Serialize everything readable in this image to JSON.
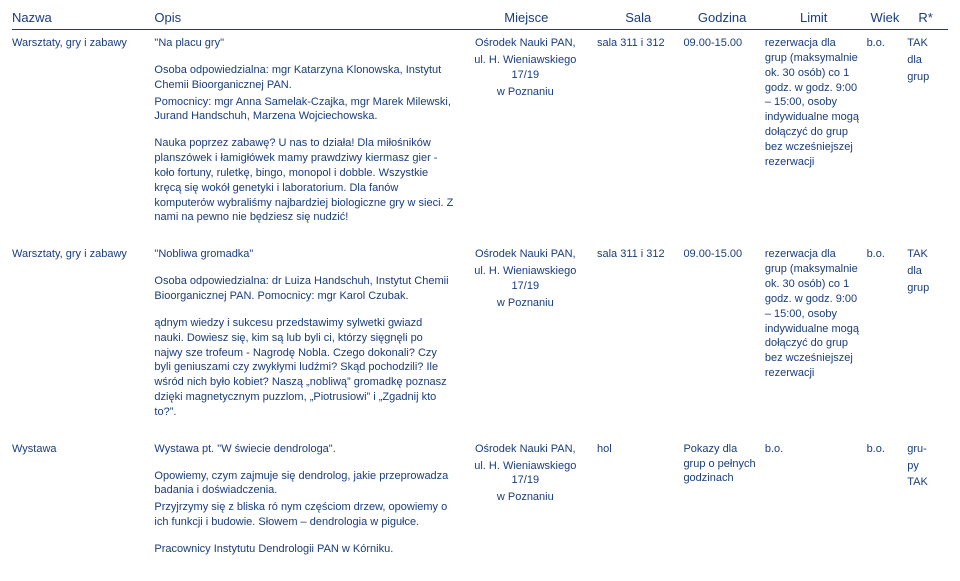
{
  "headers": {
    "nazwa": "Nazwa",
    "opis": "Opis",
    "miejsce": "Miejsce",
    "sala": "Sala",
    "godzina": "Godzina",
    "limit": "Limit",
    "wiek": "Wiek",
    "r": "R*"
  },
  "rows": [
    {
      "nazwa": "Warsztaty, gry i zabawy",
      "opis_title": "\"Na placu gry\"",
      "opis_p1": "Osoba odpowiedzialna: mgr Katarzyna Klonowska, Instytut Chemii Bioorganicznej PAN.",
      "opis_p2": "Pomocnicy: mgr Anna Samelak-Czajka, mgr Marek Milewski, Jurand Handschuh, Marzena Wojciechowska.",
      "opis_p3": "Nauka poprzez zabawę? U nas to działa! Dla miłośników planszówek i łamigłówek mamy prawdziwy kiermasz gier - koło fortuny, ruletkę, bingo, monopol i dobble. Wszystkie kręcą się wokół genetyki i laboratorium. Dla fanów komputerów wybraliśmy najbardziej biologiczne gry w sieci. Z nami na pewno nie będziesz się nudzić!",
      "miejsce_l1": "Ośrodek Nauki PAN,",
      "miejsce_l2": "ul. H. Wieniawskiego 17/19",
      "miejsce_l3": "w Poznaniu",
      "sala": "sala 311 i 312",
      "godzina": "09.00-15.00",
      "limit": "rezerwacja dla grup (maksymalnie ok. 30 osób) co 1 godz. w godz. 9:00 – 15:00, osoby indywidualne mogą dołączyć do grup bez wcześniejszej rezerwacji",
      "wiek": "b.o.",
      "r_l1": "TAK",
      "r_l2": "dla",
      "r_l3": "grup"
    },
    {
      "nazwa": "Warsztaty, gry i zabawy",
      "opis_title": "\"Nobliwa gromadka\"",
      "opis_p1": "Osoba odpowiedzialna: dr Luiza Handschuh, Instytut Chemii Bioorganicznej PAN. Pomocnicy: mgr Karol Czubak.",
      "opis_p2": "",
      "opis_p3": "ądnym wiedzy i sukcesu przedstawimy sylwetki gwiazd nauki. Dowiesz się, kim są lub byli ci, którzy sięgnęli po najwy sze trofeum - Nagrodę Nobla. Czego dokonali? Czy byli geniuszami czy zwykłymi ludźmi? Skąd pochodzili? Ile wśród nich było kobiet? Naszą „nobliwą” gromadkę poznasz dzięki magnetycznym puzzlom, „Piotrusiowi” i „Zgadnij kto to?”.",
      "miejsce_l1": "Ośrodek Nauki PAN,",
      "miejsce_l2": "ul. H. Wieniawskiego 17/19",
      "miejsce_l3": "w Poznaniu",
      "sala": "sala 311 i 312",
      "godzina": "09.00-15.00",
      "limit": "rezerwacja dla grup (maksymalnie ok. 30 osób) co 1 godz. w godz. 9:00 – 15:00, osoby indywidualne mogą dołączyć do grup bez wcześniejszej rezerwacji",
      "wiek": "b.o.",
      "r_l1": "TAK",
      "r_l2": "dla",
      "r_l3": "grup"
    },
    {
      "nazwa": "Wystawa",
      "opis_title": "Wystawa pt. \"W świecie dendrologa\".",
      "opis_p1": "Opowiemy, czym zajmuje się dendrolog, jakie przeprowadza badania i doświadczenia.",
      "opis_p2": "Przyjrzymy się z bliska ró nym częściom drzew, opowiemy o ich funkcji i budowie. Słowem – dendrologia w pigułce.",
      "opis_p3": "Pracownicy Instytutu Dendrologii PAN w Kórniku.",
      "miejsce_l1": "Ośrodek Nauki PAN,",
      "miejsce_l2": "ul. H. Wieniawskiego 17/19",
      "miejsce_l3": "w Poznaniu",
      "sala": "hol",
      "godzina": "Pokazy dla grup o pełnych godzinach",
      "limit": "b.o.",
      "wiek": "b.o.",
      "r_l1": "gru-",
      "r_l2": "py",
      "r_l3": "TAK"
    }
  ]
}
